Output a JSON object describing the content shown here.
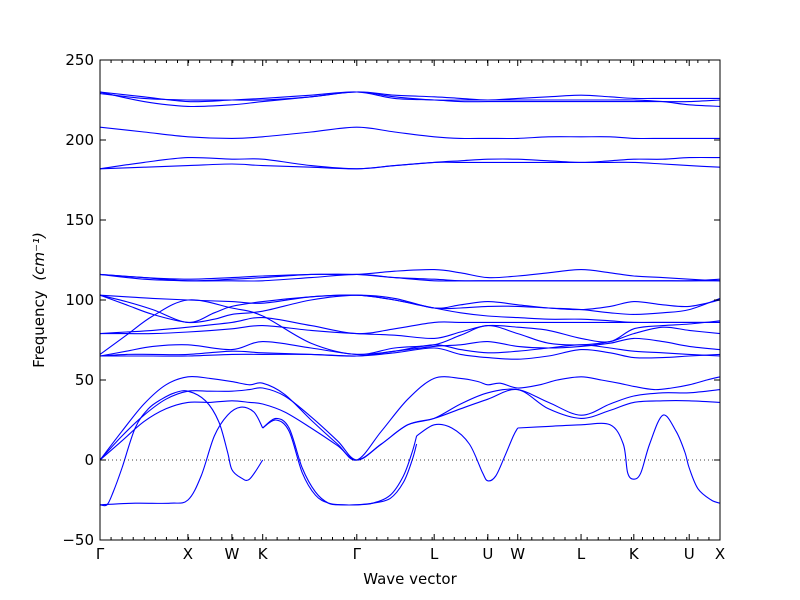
{
  "chart_data": {
    "type": "line",
    "title": "",
    "xlabel": "Wave vector",
    "ylabel": "Frequency",
    "ylabel_unit": "(cm⁻¹)",
    "ylim": [
      -50,
      250
    ],
    "yticks": [
      -50,
      0,
      50,
      100,
      150,
      200,
      250
    ],
    "xlim": [
      0,
      7.05
    ],
    "xticks": [
      {
        "label": "Γ",
        "x": 0.0
      },
      {
        "label": "X",
        "x": 1.0
      },
      {
        "label": "W",
        "x": 1.5
      },
      {
        "label": "K",
        "x": 1.85
      },
      {
        "label": "Γ",
        "x": 2.92
      },
      {
        "label": "L",
        "x": 3.8
      },
      {
        "label": "U",
        "x": 4.41
      },
      {
        "label": "W",
        "x": 4.75
      },
      {
        "label": "L",
        "x": 5.47
      },
      {
        "label": "K",
        "x": 6.07
      },
      {
        "label": "U",
        "x": 6.7
      },
      {
        "label": "X",
        "x": 7.05
      }
    ],
    "zero_line": true,
    "series_color": "#0000ff",
    "series": [
      {
        "x": [
          0,
          0.5,
          1.0,
          1.5,
          1.85,
          2.4,
          2.92,
          3.35,
          3.8,
          4.1,
          4.41,
          4.75,
          5.1,
          5.47,
          5.8,
          6.07,
          6.4,
          6.7,
          7.05
        ],
        "values": [
          230,
          227,
          224,
          225,
          226,
          228,
          230,
          226,
          225,
          224,
          224,
          224,
          224,
          224,
          224,
          224,
          224,
          224,
          225
        ]
      },
      {
        "x": [
          0,
          0.5,
          1.0,
          1.5,
          1.85,
          2.4,
          2.92,
          3.35,
          3.8,
          4.1,
          4.41,
          4.75,
          5.1,
          5.47,
          5.8,
          6.07,
          6.4,
          6.7,
          7.05
        ],
        "values": [
          230,
          224,
          221,
          222,
          224,
          227,
          230,
          228,
          227,
          226,
          225,
          226,
          227,
          228,
          227,
          226,
          226,
          226,
          226
        ]
      },
      {
        "x": [
          0,
          0.5,
          1.0,
          1.5,
          1.85,
          2.4,
          2.92,
          3.35,
          3.8,
          4.1,
          4.41,
          4.75,
          5.1,
          5.47,
          5.8,
          6.07,
          6.4,
          6.7,
          7.05
        ],
        "values": [
          229,
          226,
          225,
          225,
          225,
          227,
          230,
          227,
          225,
          225,
          225,
          225,
          225,
          225,
          225,
          225,
          224,
          222,
          221
        ]
      },
      {
        "x": [
          0,
          0.5,
          1.0,
          1.5,
          1.85,
          2.4,
          2.92,
          3.35,
          3.8,
          4.1,
          4.41,
          4.75,
          5.1,
          5.47,
          5.8,
          6.07,
          6.4,
          6.7,
          7.05
        ],
        "values": [
          208,
          205,
          202,
          201,
          202,
          205,
          208,
          205,
          202,
          201,
          201,
          201,
          202,
          202,
          202,
          201,
          201,
          201,
          201
        ]
      },
      {
        "x": [
          0,
          0.5,
          1.0,
          1.5,
          1.85,
          2.4,
          2.92,
          3.35,
          3.8,
          4.1,
          4.41,
          4.75,
          5.1,
          5.47,
          5.8,
          6.07,
          6.4,
          6.7,
          7.05
        ],
        "values": [
          182,
          186,
          189,
          188,
          188,
          184,
          182,
          184,
          186,
          187,
          188,
          188,
          187,
          186,
          187,
          188,
          188,
          189,
          189
        ]
      },
      {
        "x": [
          0,
          0.5,
          1.0,
          1.5,
          1.85,
          2.4,
          2.92,
          3.35,
          3.8,
          4.1,
          4.41,
          4.75,
          5.1,
          5.47,
          5.8,
          6.07,
          6.4,
          6.7,
          7.05
        ],
        "values": [
          182,
          183,
          184,
          185,
          184,
          183,
          182,
          184,
          186,
          186,
          186,
          186,
          186,
          186,
          186,
          186,
          185,
          184,
          183
        ]
      },
      {
        "x": [
          0,
          0.5,
          1.0,
          1.5,
          1.85,
          2.4,
          2.92,
          3.35,
          3.8,
          4.1,
          4.41,
          4.75,
          5.1,
          5.47,
          5.8,
          6.07,
          6.4,
          6.7,
          7.05
        ],
        "values": [
          116,
          114,
          112,
          113,
          114,
          116,
          116,
          118,
          119,
          117,
          114,
          115,
          117,
          119,
          117,
          115,
          114,
          113,
          112
        ]
      },
      {
        "x": [
          0,
          0.5,
          1.0,
          1.5,
          1.85,
          2.4,
          2.92,
          3.35,
          3.8,
          4.1,
          4.41,
          4.75,
          5.1,
          5.47,
          5.8,
          6.07,
          6.4,
          6.7,
          7.05
        ],
        "values": [
          116,
          113,
          112,
          112,
          112,
          114,
          116,
          114,
          112,
          112,
          112,
          112,
          112,
          112,
          112,
          112,
          112,
          112,
          112
        ]
      },
      {
        "x": [
          0,
          0.5,
          1.0,
          1.5,
          1.85,
          2.4,
          2.92,
          3.35,
          3.8,
          4.1,
          4.41,
          4.75,
          5.1,
          5.47,
          5.8,
          6.07,
          6.4,
          6.7,
          7.05
        ],
        "values": [
          116,
          114,
          113,
          114,
          115,
          116,
          116,
          114,
          113,
          112,
          112,
          112,
          112,
          112,
          112,
          112,
          112,
          112,
          113
        ]
      },
      {
        "x": [
          0,
          0.3,
          0.6,
          1.0,
          1.5,
          1.85,
          2.4,
          2.92,
          3.35,
          3.8,
          4.1,
          4.41,
          4.75,
          5.1,
          5.47,
          5.8,
          6.07,
          6.4,
          6.7,
          7.05
        ],
        "values": [
          103,
          102,
          101,
          100,
          99,
          98,
          102,
          103,
          100,
          95,
          92,
          90,
          89,
          88,
          88,
          87,
          86,
          86,
          86,
          86
        ]
      },
      {
        "x": [
          0,
          0.3,
          0.6,
          1.0,
          1.3,
          1.5,
          1.85,
          2.4,
          2.92,
          3.35,
          3.8,
          4.1,
          4.41,
          4.75,
          5.1,
          5.47,
          5.8,
          6.07,
          6.4,
          6.7,
          7.05
        ],
        "values": [
          103,
          97,
          91,
          86,
          88,
          91,
          93,
          100,
          103,
          101,
          95,
          97,
          99,
          97,
          95,
          94,
          96,
          99,
          97,
          96,
          100
        ]
      },
      {
        "x": [
          0,
          0.3,
          0.6,
          1.0,
          1.3,
          1.5,
          1.85,
          2.4,
          2.92,
          3.35,
          3.8,
          4.1,
          4.41,
          4.75,
          5.1,
          5.47,
          5.8,
          6.07,
          6.4,
          6.7,
          7.05
        ],
        "values": [
          103,
          99,
          94,
          86,
          92,
          96,
          99,
          102,
          103,
          100,
          95,
          95,
          96,
          96,
          95,
          94,
          92,
          91,
          92,
          94,
          101
        ]
      },
      {
        "x": [
          0,
          0.3,
          0.6,
          1.0,
          1.5,
          1.85,
          2.4,
          2.92,
          3.35,
          3.8,
          4.1,
          4.41,
          4.75,
          5.1,
          5.47,
          5.8,
          6.07,
          6.4,
          6.7,
          7.05
        ],
        "values": [
          79,
          80,
          81,
          83,
          86,
          89,
          84,
          79,
          82,
          86,
          86,
          86,
          86,
          86,
          86,
          86,
          86,
          86,
          86,
          86
        ]
      },
      {
        "x": [
          0,
          0.3,
          0.6,
          1.0,
          1.5,
          1.85,
          2.4,
          2.92,
          3.35,
          3.8,
          4.1,
          4.41,
          4.75,
          5.1,
          5.47,
          5.8,
          6.07,
          6.4,
          6.7,
          7.05
        ],
        "values": [
          79,
          79,
          79,
          80,
          82,
          84,
          81,
          79,
          78,
          76,
          80,
          84,
          83,
          81,
          76,
          74,
          82,
          84,
          85,
          87
        ]
      },
      {
        "x": [
          0,
          0.3,
          0.6,
          1.0,
          1.5,
          1.85,
          2.4,
          2.92,
          3.35,
          3.8,
          4.1,
          4.41,
          4.75,
          5.1,
          5.47,
          5.8,
          6.07,
          6.4,
          6.7,
          7.05
        ],
        "values": [
          66,
          78,
          90,
          100,
          95,
          90,
          73,
          66,
          70,
          72,
          78,
          84,
          79,
          73,
          72,
          74,
          79,
          83,
          81,
          79
        ]
      },
      {
        "x": [
          0,
          0.3,
          0.6,
          1.0,
          1.5,
          1.85,
          2.4,
          2.92,
          3.35,
          3.8,
          4.1,
          4.41,
          4.75,
          5.1,
          5.47,
          5.8,
          6.07,
          6.4,
          6.7,
          7.05
        ],
        "values": [
          65,
          68,
          71,
          72,
          69,
          74,
          70,
          66,
          68,
          71,
          72,
          74,
          71,
          70,
          71,
          73,
          76,
          74,
          71,
          69
        ]
      },
      {
        "x": [
          0,
          0.3,
          0.6,
          1.0,
          1.5,
          1.85,
          2.4,
          2.92,
          3.35,
          3.8,
          4.1,
          4.41,
          4.75,
          5.1,
          5.47,
          5.8,
          6.07,
          6.4,
          6.7,
          7.05
        ],
        "values": [
          65,
          66,
          66,
          66,
          68,
          67,
          66,
          65,
          68,
          72,
          69,
          67,
          68,
          70,
          72,
          70,
          68,
          67,
          66,
          65
        ]
      },
      {
        "x": [
          0,
          0.3,
          0.6,
          1.0,
          1.5,
          1.85,
          2.4,
          2.92,
          3.35,
          3.8,
          4.1,
          4.41,
          4.75,
          5.1,
          5.47,
          5.8,
          6.07,
          6.4,
          6.7,
          7.05
        ],
        "values": [
          65,
          65,
          65,
          65,
          66,
          66,
          66,
          65,
          67,
          70,
          66,
          64,
          63,
          65,
          69,
          67,
          64,
          64,
          65,
          66
        ]
      },
      {
        "x": [
          0,
          0.25,
          0.5,
          0.75,
          1.0,
          1.25,
          1.5,
          1.7,
          1.85,
          2.1,
          2.4,
          2.7,
          2.92,
          3.2,
          3.5,
          3.8,
          4.1,
          4.3,
          4.41,
          4.55,
          4.75,
          5.0,
          5.2,
          5.47,
          5.7,
          5.9,
          6.07,
          6.3,
          6.5,
          6.7,
          6.9,
          7.05
        ],
        "values": [
          0,
          18,
          35,
          47,
          52,
          51,
          49,
          47,
          48,
          41,
          25,
          10,
          0,
          18,
          38,
          51,
          51,
          49,
          47,
          48,
          45,
          47,
          50,
          52,
          50,
          48,
          46,
          44,
          45,
          47,
          50,
          52
        ]
      },
      {
        "x": [
          0,
          0.25,
          0.5,
          0.75,
          1.0,
          1.25,
          1.5,
          1.7,
          1.85,
          2.1,
          2.4,
          2.7,
          2.92,
          3.2,
          3.5,
          3.8,
          4.1,
          4.41,
          4.75,
          5.1,
          5.47,
          5.8,
          6.07,
          6.4,
          6.7,
          7.05
        ],
        "values": [
          0,
          15,
          28,
          38,
          43,
          43,
          43,
          44,
          45,
          40,
          27,
          12,
          0,
          10,
          22,
          26,
          35,
          42,
          44,
          36,
          28,
          35,
          40,
          42,
          42,
          44
        ]
      },
      {
        "x": [
          0,
          0.25,
          0.5,
          0.75,
          1.0,
          1.25,
          1.5,
          1.7,
          1.85,
          2.1,
          2.4,
          2.7,
          2.92,
          3.2,
          3.5,
          3.8,
          4.1,
          4.41,
          4.75,
          5.1,
          5.47,
          5.8,
          6.07,
          6.4,
          6.7,
          7.05
        ],
        "values": [
          0,
          12,
          24,
          32,
          36,
          36,
          37,
          36,
          35,
          30,
          20,
          9,
          0,
          10,
          22,
          26,
          32,
          38,
          44,
          32,
          26,
          31,
          36,
          37,
          37,
          36
        ]
      },
      {
        "x": [
          0,
          0.08,
          0.15,
          0.25,
          0.4,
          0.55,
          0.7,
          0.85,
          1.0,
          1.2,
          1.35,
          1.45,
          1.5,
          1.6,
          1.7,
          1.85
        ],
        "values": [
          -28,
          -28,
          -20,
          -5,
          20,
          32,
          38,
          42,
          43,
          37,
          24,
          5,
          -6,
          -11,
          -12,
          0
        ]
      },
      {
        "x": [
          0,
          0.4,
          0.8,
          1.0,
          1.15,
          1.3,
          1.45,
          1.6,
          1.75,
          1.85
        ],
        "values": [
          -28,
          -27,
          -27,
          -25,
          -10,
          15,
          28,
          33,
          30,
          20
        ]
      },
      {
        "x": [
          1.85,
          2.0,
          2.15,
          2.3,
          2.45,
          2.6,
          2.75,
          2.92,
          3.1,
          3.3,
          3.45,
          3.55,
          3.6
        ],
        "values": [
          20,
          26,
          20,
          -5,
          -20,
          -27,
          -28,
          -28,
          -27,
          -22,
          -10,
          5,
          15
        ]
      },
      {
        "x": [
          1.85,
          2.0,
          2.15,
          2.3,
          2.45,
          2.6,
          2.75,
          2.92,
          3.1,
          3.3,
          3.45,
          3.55,
          3.6
        ],
        "values": [
          20,
          25,
          18,
          -8,
          -22,
          -27,
          -28,
          -28,
          -27,
          -24,
          -14,
          0,
          10
        ]
      },
      {
        "x": [
          3.6,
          3.8,
          4.0,
          4.2,
          4.35,
          4.41,
          4.5,
          4.6,
          4.7,
          4.75
        ],
        "values": [
          15,
          22,
          20,
          10,
          -8,
          -13,
          -10,
          2,
          15,
          20
        ]
      },
      {
        "x": [
          4.75,
          5.1,
          5.47,
          5.8,
          5.95,
          6.0,
          6.07,
          6.15,
          6.25,
          6.4,
          6.55,
          6.65,
          6.7,
          6.8,
          6.95,
          7.05
        ],
        "values": [
          20,
          21,
          22,
          22,
          10,
          -8,
          -12,
          -8,
          10,
          28,
          18,
          5,
          -5,
          -18,
          -25,
          -27
        ]
      }
    ]
  }
}
